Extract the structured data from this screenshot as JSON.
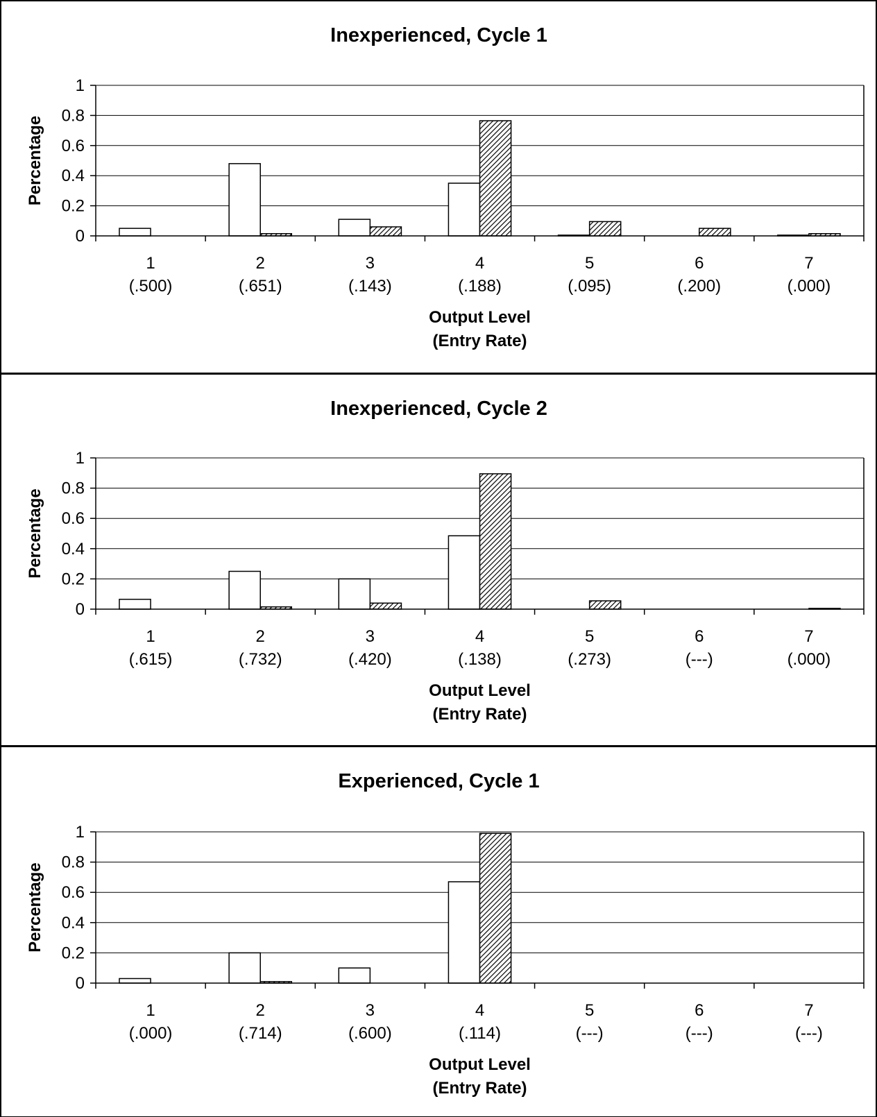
{
  "chart_data": [
    {
      "type": "bar",
      "title": "Inexperienced, Cycle 1",
      "ylabel": "Percentage",
      "xlabel_lines": [
        "Output Level",
        "(Entry Rate)"
      ],
      "ylim": [
        0,
        1
      ],
      "yticks": [
        "0",
        "0.2",
        "0.4",
        "0.6",
        "0.8",
        "1"
      ],
      "categories": [
        {
          "level": "1",
          "rate": "(.500)"
        },
        {
          "level": "2",
          "rate": "(.651)"
        },
        {
          "level": "3",
          "rate": "(.143)"
        },
        {
          "level": "4",
          "rate": "(.188)"
        },
        {
          "level": "5",
          "rate": "(.095)"
        },
        {
          "level": "6",
          "rate": "(.200)"
        },
        {
          "level": "7",
          "rate": "(.000)"
        }
      ],
      "series": [
        {
          "style": "white",
          "values": [
            0.05,
            0.48,
            0.11,
            0.35,
            0.005,
            0.0,
            0.005
          ]
        },
        {
          "style": "hatched",
          "values": [
            0.0,
            0.015,
            0.06,
            0.765,
            0.095,
            0.05,
            0.015
          ]
        }
      ],
      "grid": true
    },
    {
      "type": "bar",
      "title": "Inexperienced, Cycle 2",
      "ylabel": "Percentage",
      "xlabel_lines": [
        "Output Level",
        "(Entry Rate)"
      ],
      "ylim": [
        0,
        1
      ],
      "yticks": [
        "0",
        "0.2",
        "0.4",
        "0.6",
        "0.8",
        "1"
      ],
      "categories": [
        {
          "level": "1",
          "rate": "(.615)"
        },
        {
          "level": "2",
          "rate": "(.732)"
        },
        {
          "level": "3",
          "rate": "(.420)"
        },
        {
          "level": "4",
          "rate": "(.138)"
        },
        {
          "level": "5",
          "rate": "(.273)"
        },
        {
          "level": "6",
          "rate": "(---)"
        },
        {
          "level": "7",
          "rate": "(.000)"
        }
      ],
      "series": [
        {
          "style": "white",
          "values": [
            0.065,
            0.25,
            0.2,
            0.485,
            0.0,
            0.0,
            0.0
          ]
        },
        {
          "style": "hatched",
          "values": [
            0.0,
            0.015,
            0.04,
            0.895,
            0.055,
            0.0,
            0.005
          ]
        }
      ],
      "grid": true
    },
    {
      "type": "bar",
      "title": "Experienced, Cycle 1",
      "ylabel": "Percentage",
      "xlabel_lines": [
        "Output Level",
        "(Entry Rate)"
      ],
      "ylim": [
        0,
        1
      ],
      "yticks": [
        "0",
        "0.2",
        "0.4",
        "0.6",
        "0.8",
        "1"
      ],
      "categories": [
        {
          "level": "1",
          "rate": "(.000)"
        },
        {
          "level": "2",
          "rate": "(.714)"
        },
        {
          "level": "3",
          "rate": "(.600)"
        },
        {
          "level": "4",
          "rate": "(.114)"
        },
        {
          "level": "5",
          "rate": "(---)"
        },
        {
          "level": "6",
          "rate": "(---)"
        },
        {
          "level": "7",
          "rate": "(---)"
        }
      ],
      "series": [
        {
          "style": "white",
          "values": [
            0.03,
            0.2,
            0.1,
            0.67,
            0.0,
            0.0,
            0.0
          ]
        },
        {
          "style": "hatched",
          "values": [
            0.0,
            0.01,
            0.0,
            0.99,
            0.0,
            0.0,
            0.0
          ]
        }
      ],
      "grid": true
    }
  ]
}
